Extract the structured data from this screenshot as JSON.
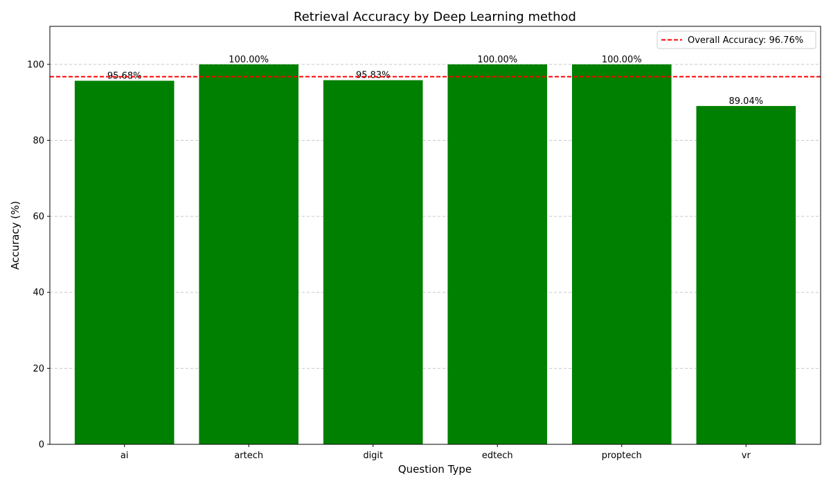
{
  "chart_data": {
    "type": "bar",
    "title": "Retrieval Accuracy by Deep Learning method",
    "xlabel": "Question Type",
    "ylabel": "Accuracy (%)",
    "categories": [
      "ai",
      "artech",
      "digit",
      "edtech",
      "proptech",
      "vr"
    ],
    "values": [
      95.68,
      100.0,
      95.83,
      100.0,
      100.0,
      89.04
    ],
    "value_labels": [
      "95.68%",
      "100.00%",
      "95.83%",
      "100.00%",
      "100.00%",
      "89.04%"
    ],
    "ylim": [
      0,
      110
    ],
    "yticks": [
      0,
      20,
      40,
      60,
      80,
      100
    ],
    "grid": {
      "axis": "y",
      "style": "dashed",
      "enabled": true
    },
    "bar_color": "#008000",
    "reference_line": {
      "value": 96.76,
      "label": "Overall Accuracy: 96.76%",
      "color": "#ff0000",
      "style": "dashed"
    },
    "legend": {
      "position": "top-right"
    }
  }
}
